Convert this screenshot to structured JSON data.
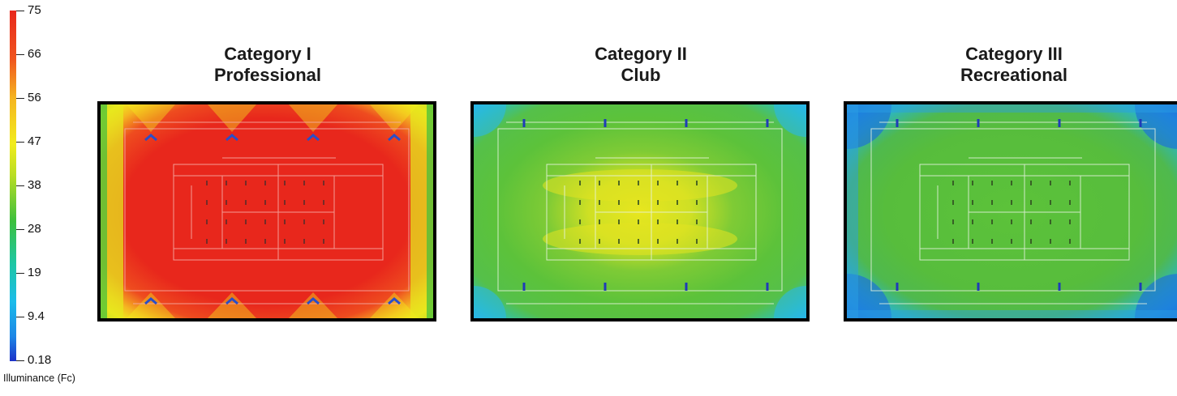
{
  "legend": {
    "title": "Illuminance (Fc)",
    "ticks": [
      "75",
      "66",
      "56",
      "47",
      "38",
      "28",
      "19",
      "9.4",
      "0.18"
    ],
    "colors": [
      "#e8271c",
      "#f0561e",
      "#f5b521",
      "#f2ec1c",
      "#b9dd24",
      "#3dbf3d",
      "#1ec7a3",
      "#1bbcea",
      "#1c86e6",
      "#1c31c8"
    ]
  },
  "chart_data": [
    {
      "type": "heatmap",
      "title": "Category I Professional",
      "title_lines": [
        "Category I",
        "Professional"
      ],
      "value_range": [
        0.18,
        75
      ],
      "dominant_color": "#e8271c",
      "edge_color": "#f2ec1c"
    },
    {
      "type": "heatmap",
      "title": "Category II Club",
      "title_lines": [
        "Category II",
        "Club"
      ],
      "value_range": [
        0.18,
        75
      ],
      "dominant_color": "#5cc23a",
      "center_color": "#e8e61e",
      "edge_color": "#2ab8e8"
    },
    {
      "type": "heatmap",
      "title": "Category III Recreational",
      "title_lines": [
        "Category III",
        "Recreational"
      ],
      "value_range": [
        0.18,
        75
      ],
      "dominant_color": "#57bd3c",
      "edge_color": "#1f7fe0"
    }
  ]
}
